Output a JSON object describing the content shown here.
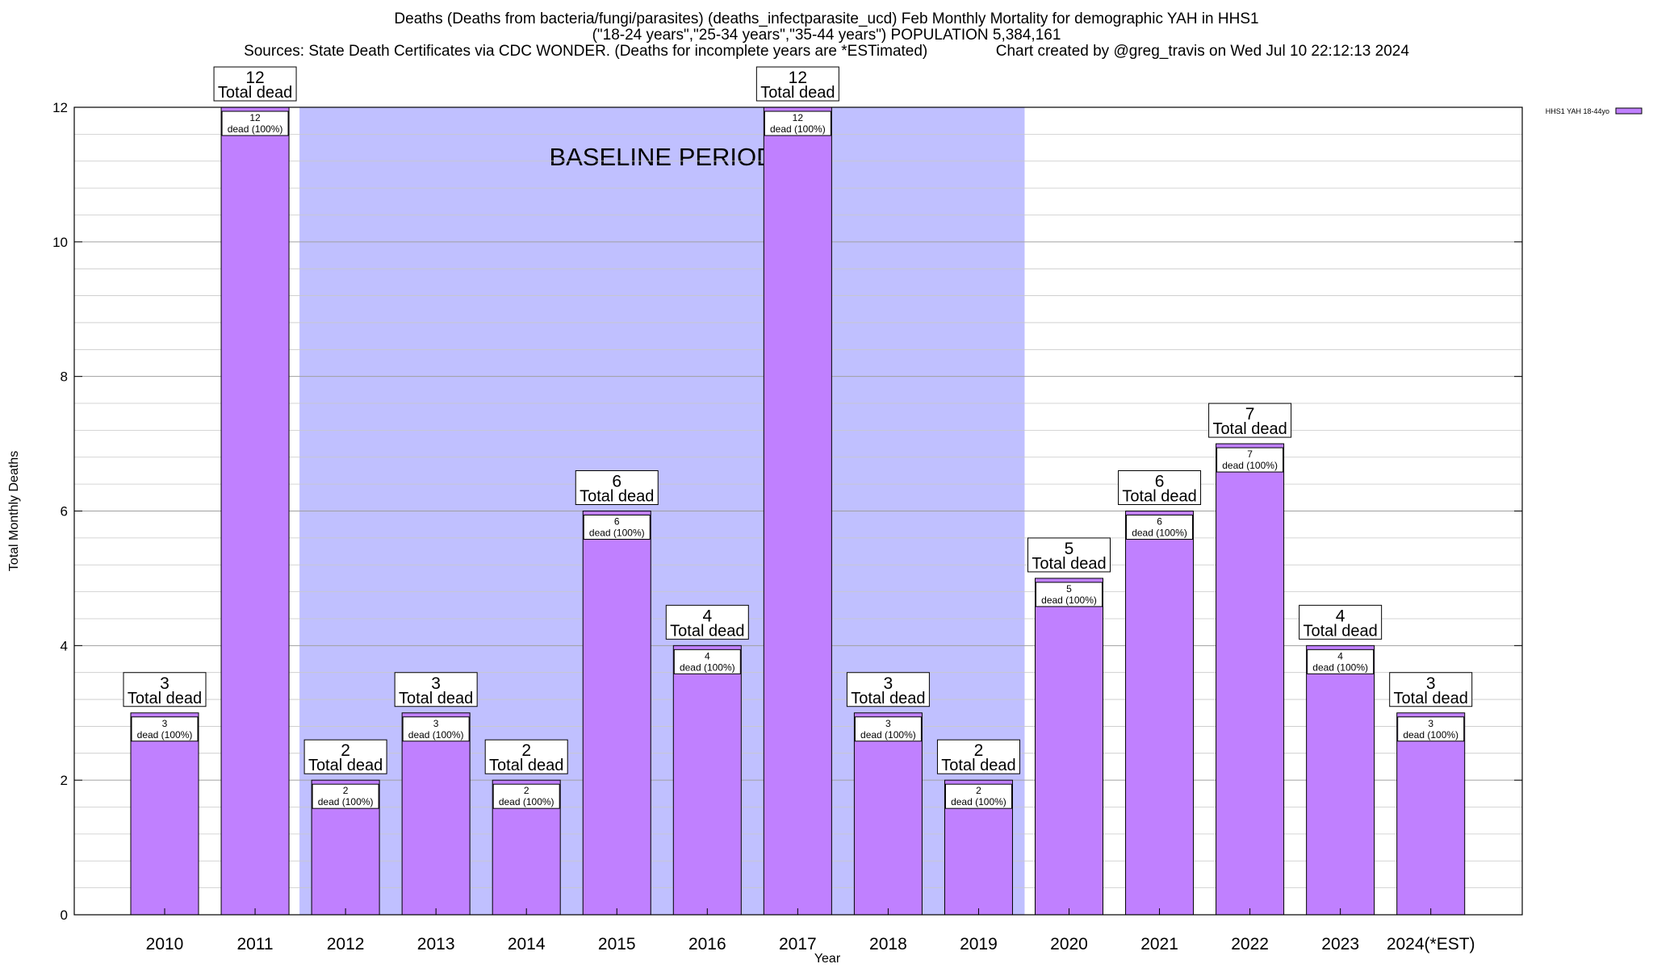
{
  "header": {
    "title_line1": "Deaths (Deaths from bacteria/fungi/parasites) (deaths_infectparasite_ucd) Feb Monthly Mortality for demographic YAH in HHS1",
    "title_line2": "(\"18-24 years\",\"25-34 years\",\"35-44 years\") POPULATION 5,384,161",
    "title_line3": "Sources: State Death Certificates via CDC WONDER. (Deaths for incomplete years are *ESTimated)                Chart created by @greg_travis on Wed Jul 10 22:12:13 2024"
  },
  "chart_data": {
    "type": "bar",
    "xlabel": "Year",
    "ylabel": "Total Monthly Deaths",
    "ylim": [
      0,
      12
    ],
    "yticks": [
      0,
      2,
      4,
      6,
      8,
      10,
      12
    ],
    "grid": true,
    "legend_position": "top-right",
    "categories": [
      "2010",
      "2011",
      "2012",
      "2013",
      "2014",
      "2015",
      "2016",
      "2017",
      "2018",
      "2019",
      "2020",
      "2021",
      "2022",
      "2023",
      "2024(*EST)"
    ],
    "series": [
      {
        "name": "HHS1 YAH 18-44yo",
        "color": "#c080ff",
        "values": [
          3,
          12,
          2,
          3,
          2,
          6,
          4,
          12,
          3,
          2,
          5,
          6,
          7,
          4,
          3
        ]
      }
    ],
    "total_label_suffix": "Total dead",
    "bar_label_suffix": "dead (100%)",
    "baseline": {
      "label": "BASELINE PERIOD",
      "from": "2012",
      "to": "2019",
      "color": "#c0c0ff"
    }
  }
}
